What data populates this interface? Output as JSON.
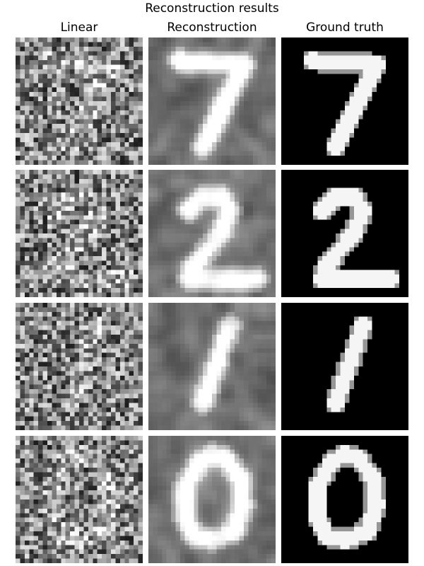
{
  "figure": {
    "title": "Reconstruction results",
    "columns": [
      {
        "label": "Linear"
      },
      {
        "label": "Reconstruction"
      },
      {
        "label": "Ground truth"
      }
    ],
    "rows": [
      {
        "digit": "7"
      },
      {
        "digit": "2"
      },
      {
        "digit": "1"
      },
      {
        "digit": "0"
      }
    ]
  }
}
